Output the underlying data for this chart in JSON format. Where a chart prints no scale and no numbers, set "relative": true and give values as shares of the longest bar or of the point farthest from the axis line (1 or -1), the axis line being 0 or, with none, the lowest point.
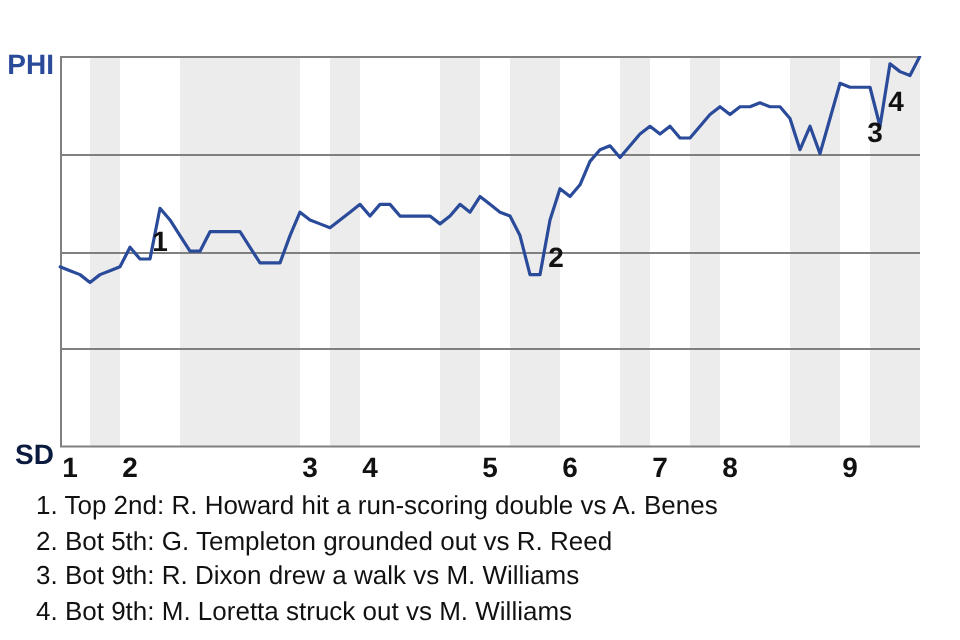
{
  "chart_data": {
    "type": "line",
    "relative": true,
    "categories": [
      null,
      "1",
      null,
      null,
      null,
      null,
      null,
      "2",
      null,
      null,
      null,
      null,
      null,
      null,
      null,
      null,
      null,
      null,
      null,
      null,
      null,
      null,
      null,
      null,
      null,
      "3",
      null,
      null,
      null,
      null,
      null,
      "4",
      null,
      null,
      null,
      null,
      null,
      null,
      null,
      null,
      null,
      null,
      null,
      "5",
      null,
      null,
      null,
      null,
      null,
      null,
      null,
      "6",
      null,
      null,
      null,
      null,
      null,
      null,
      null,
      null,
      "7",
      null,
      null,
      null,
      null,
      null,
      null,
      "8",
      null,
      null,
      null,
      null,
      null,
      null,
      null,
      null,
      null,
      null,
      null,
      "9",
      null,
      null,
      null,
      null,
      null,
      null,
      null
    ],
    "series": [
      {
        "color": "#2a4a9a",
        "values": [
          0.46,
          0.45,
          0.44,
          0.42,
          0.44,
          0.45,
          0.46,
          0.51,
          0.48,
          0.48,
          0.61,
          0.58,
          0.54,
          0.5,
          0.5,
          0.55,
          0.55,
          0.55,
          0.55,
          0.51,
          0.47,
          0.47,
          0.47,
          0.54,
          0.6,
          0.58,
          0.57,
          0.56,
          0.58,
          0.6,
          0.62,
          0.59,
          0.62,
          0.62,
          0.59,
          0.59,
          0.59,
          0.59,
          0.57,
          0.59,
          0.62,
          0.6,
          0.64,
          0.62,
          0.6,
          0.59,
          0.54,
          0.44,
          0.44,
          0.58,
          0.66,
          0.64,
          0.67,
          0.73,
          0.76,
          0.77,
          0.74,
          0.77,
          0.8,
          0.82,
          0.8,
          0.82,
          0.79,
          0.79,
          0.82,
          0.85,
          0.87,
          0.85,
          0.87,
          0.87,
          0.88,
          0.87,
          0.87,
          0.84,
          0.76,
          0.82,
          0.75,
          0.84,
          0.93,
          0.92,
          0.92,
          0.92,
          0.82,
          0.98,
          0.96,
          0.95,
          1.0
        ]
      }
    ],
    "marker": "none",
    "ref_lines": [
      {
        "axis": "y",
        "value": 0.25,
        "color": "#808080"
      },
      {
        "axis": "y",
        "value": 0.5,
        "color": "#808080"
      },
      {
        "axis": "y",
        "value": 0.75,
        "color": "#808080"
      },
      {
        "axis": "y",
        "value": 1,
        "color": "#808080"
      }
    ],
    "annotations": [
      "PHI",
      "SD",
      "1",
      "2",
      "3",
      "4",
      "1. Top 2nd: R. Howard hit a run-scoring double vs A. Benes",
      "2. Bot 5th: G. Templeton grounded out vs R. Reed",
      "3. Bot 9th: R. Dixon drew a walk vs M. Williams",
      "4. Bot 9th: M. Loretta struck out vs M. Williams"
    ]
  }
}
